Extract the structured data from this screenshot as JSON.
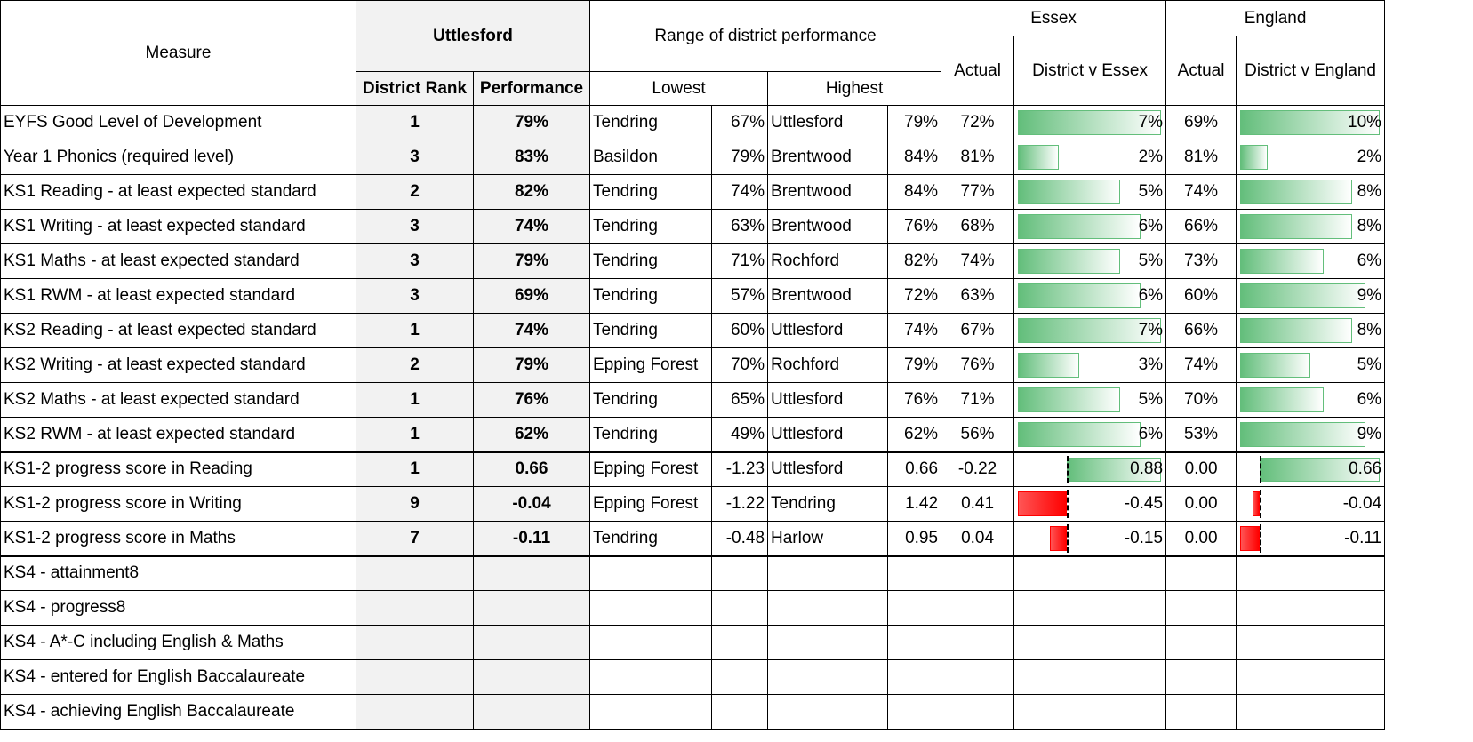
{
  "header": {
    "measure": "Measure",
    "district": "Uttlesford",
    "range": "Range of district performance",
    "essex": "Essex",
    "england": "England",
    "actual_essex": "Actual",
    "vs_essex": "District v Essex",
    "actual_england": "Actual",
    "vs_england": "District v England",
    "rank": "District Rank",
    "performance": "Performance",
    "lowest": "Lowest",
    "highest": "Highest"
  },
  "table": {
    "rows": [
      [
        "EYFS Good Level of Development",
        "1",
        "79%",
        "Tendring",
        "67%",
        "Uttlesford",
        "79%",
        "72%",
        {
          "value": 7,
          "label": "7%"
        },
        "69%",
        {
          "value": 10,
          "label": "10%"
        }
      ],
      [
        "Year 1 Phonics (required level)",
        "3",
        "83%",
        "Basildon",
        "79%",
        "Brentwood",
        "84%",
        "81%",
        {
          "value": 2,
          "label": "2%"
        },
        "81%",
        {
          "value": 2,
          "label": "2%"
        }
      ],
      [
        "KS1 Reading - at least expected standard",
        "2",
        "82%",
        "Tendring",
        "74%",
        "Brentwood",
        "84%",
        "77%",
        {
          "value": 5,
          "label": "5%"
        },
        "74%",
        {
          "value": 8,
          "label": "8%"
        }
      ],
      [
        "KS1 Writing - at least expected standard",
        "3",
        "74%",
        "Tendring",
        "63%",
        "Brentwood",
        "76%",
        "68%",
        {
          "value": 6,
          "label": "6%"
        },
        "66%",
        {
          "value": 8,
          "label": "8%"
        }
      ],
      [
        "KS1 Maths - at least expected standard",
        "3",
        "79%",
        "Tendring",
        "71%",
        "Rochford",
        "82%",
        "74%",
        {
          "value": 5,
          "label": "5%"
        },
        "73%",
        {
          "value": 6,
          "label": "6%"
        }
      ],
      [
        "KS1 RWM - at least expected standard",
        "3",
        "69%",
        "Tendring",
        "57%",
        "Brentwood",
        "72%",
        "63%",
        {
          "value": 6,
          "label": "6%"
        },
        "60%",
        {
          "value": 9,
          "label": "9%"
        }
      ],
      [
        "KS2 Reading - at least expected standard",
        "1",
        "74%",
        "Tendring",
        "60%",
        "Uttlesford",
        "74%",
        "67%",
        {
          "value": 7,
          "label": "7%"
        },
        "66%",
        {
          "value": 8,
          "label": "8%"
        }
      ],
      [
        "KS2 Writing - at least expected standard",
        "2",
        "79%",
        "Epping Forest",
        "70%",
        "Rochford",
        "79%",
        "76%",
        {
          "value": 3,
          "label": "3%"
        },
        "74%",
        {
          "value": 5,
          "label": "5%"
        }
      ],
      [
        "KS2 Maths - at least expected standard",
        "1",
        "76%",
        "Tendring",
        "65%",
        "Uttlesford",
        "76%",
        "71%",
        {
          "value": 5,
          "label": "5%"
        },
        "70%",
        {
          "value": 6,
          "label": "6%"
        }
      ],
      [
        "KS2 RWM - at least expected standard",
        "1",
        "62%",
        "Tendring",
        "49%",
        "Uttlesford",
        "62%",
        "56%",
        {
          "value": 6,
          "label": "6%"
        },
        "53%",
        {
          "value": 9,
          "label": "9%"
        }
      ],
      [
        "KS1-2 progress score in Reading",
        "1",
        "0.66",
        "Epping Forest",
        "-1.23",
        "Uttlesford",
        "0.66",
        "-0.22",
        {
          "value": 0.88,
          "label": "0.88"
        },
        "0.00",
        {
          "value": 0.66,
          "label": "0.66"
        }
      ],
      [
        "KS1-2 progress score in Writing",
        "9",
        "-0.04",
        "Epping Forest",
        "-1.22",
        "Tendring",
        "1.42",
        "0.41",
        {
          "value": -0.45,
          "label": "-0.45"
        },
        "0.00",
        {
          "value": -0.04,
          "label": "-0.04"
        }
      ],
      [
        "KS1-2 progress score in Maths",
        "7",
        "-0.11",
        "Tendring",
        "-0.48",
        "Harlow",
        "0.95",
        "0.04",
        {
          "value": -0.15,
          "label": "-0.15"
        },
        "0.00",
        {
          "value": -0.11,
          "label": "-0.11"
        }
      ],
      [
        "KS4 - attainment8"
      ],
      [
        "KS4 - progress8"
      ],
      [
        "KS4 - A*-C including English & Maths"
      ],
      [
        "KS4 - entered for English Baccalaureate"
      ],
      [
        "KS4 - achieving English Baccalaureate"
      ]
    ]
  }
}
